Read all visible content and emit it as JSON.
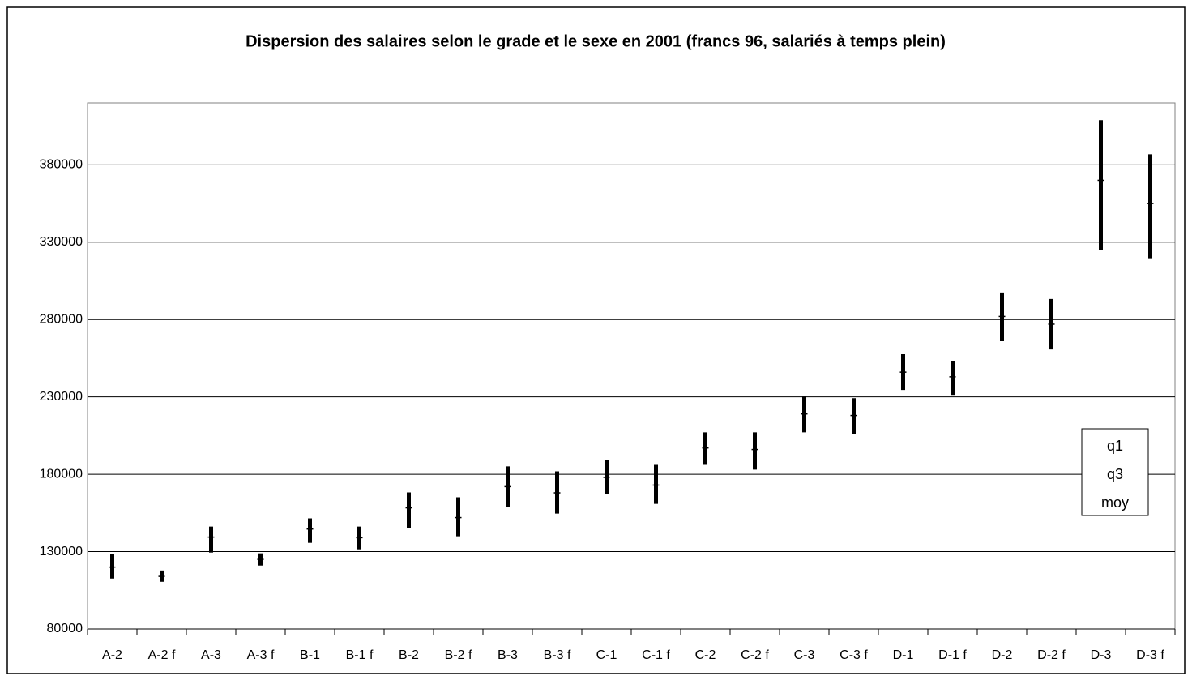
{
  "chart_data": {
    "type": "range",
    "title": "Dispersion des salaires selon le grade et le sexe en 2001 (francs 96, salariés à temps plein)",
    "categories": [
      "A-2",
      "A-2 f",
      "A-3",
      "A-3 f",
      "B-1",
      "B-1 f",
      "B-2",
      "B-2 f",
      "B-3",
      "B-3 f",
      "C-1",
      "C-1 f",
      "C-2",
      "C-2 f",
      "C-3",
      "C-3 f",
      "D-1",
      "D-1 f",
      "D-2",
      "D-2 f",
      "D-3",
      "D-3 f"
    ],
    "series": [
      {
        "name": "q1",
        "color": "#000000",
        "values": [
          112600,
          110500,
          129400,
          121000,
          135700,
          131500,
          145200,
          139900,
          158800,
          154600,
          167200,
          160900,
          186100,
          183000,
          207100,
          206100,
          234500,
          231300,
          266000,
          260700,
          324800,
          319600
        ]
      },
      {
        "name": "q3",
        "color": "#000000",
        "values": [
          128300,
          117800,
          146200,
          128900,
          151500,
          146200,
          168300,
          165100,
          185100,
          181900,
          189300,
          186100,
          207100,
          207100,
          230300,
          229200,
          257600,
          253400,
          297500,
          293300,
          408900,
          386800
        ]
      },
      {
        "name": "moy",
        "color": "#000000",
        "values": [
          120000,
          114000,
          139400,
          125000,
          144600,
          139000,
          158300,
          152000,
          172000,
          168000,
          178000,
          173000,
          197000,
          196000,
          219000,
          218000,
          246000,
          243000,
          282000,
          277000,
          370000,
          355000
        ]
      }
    ],
    "ylim": [
      80000,
      420000
    ],
    "yticks": [
      80000,
      130000,
      180000,
      230000,
      280000,
      330000,
      380000
    ],
    "grid": true
  }
}
